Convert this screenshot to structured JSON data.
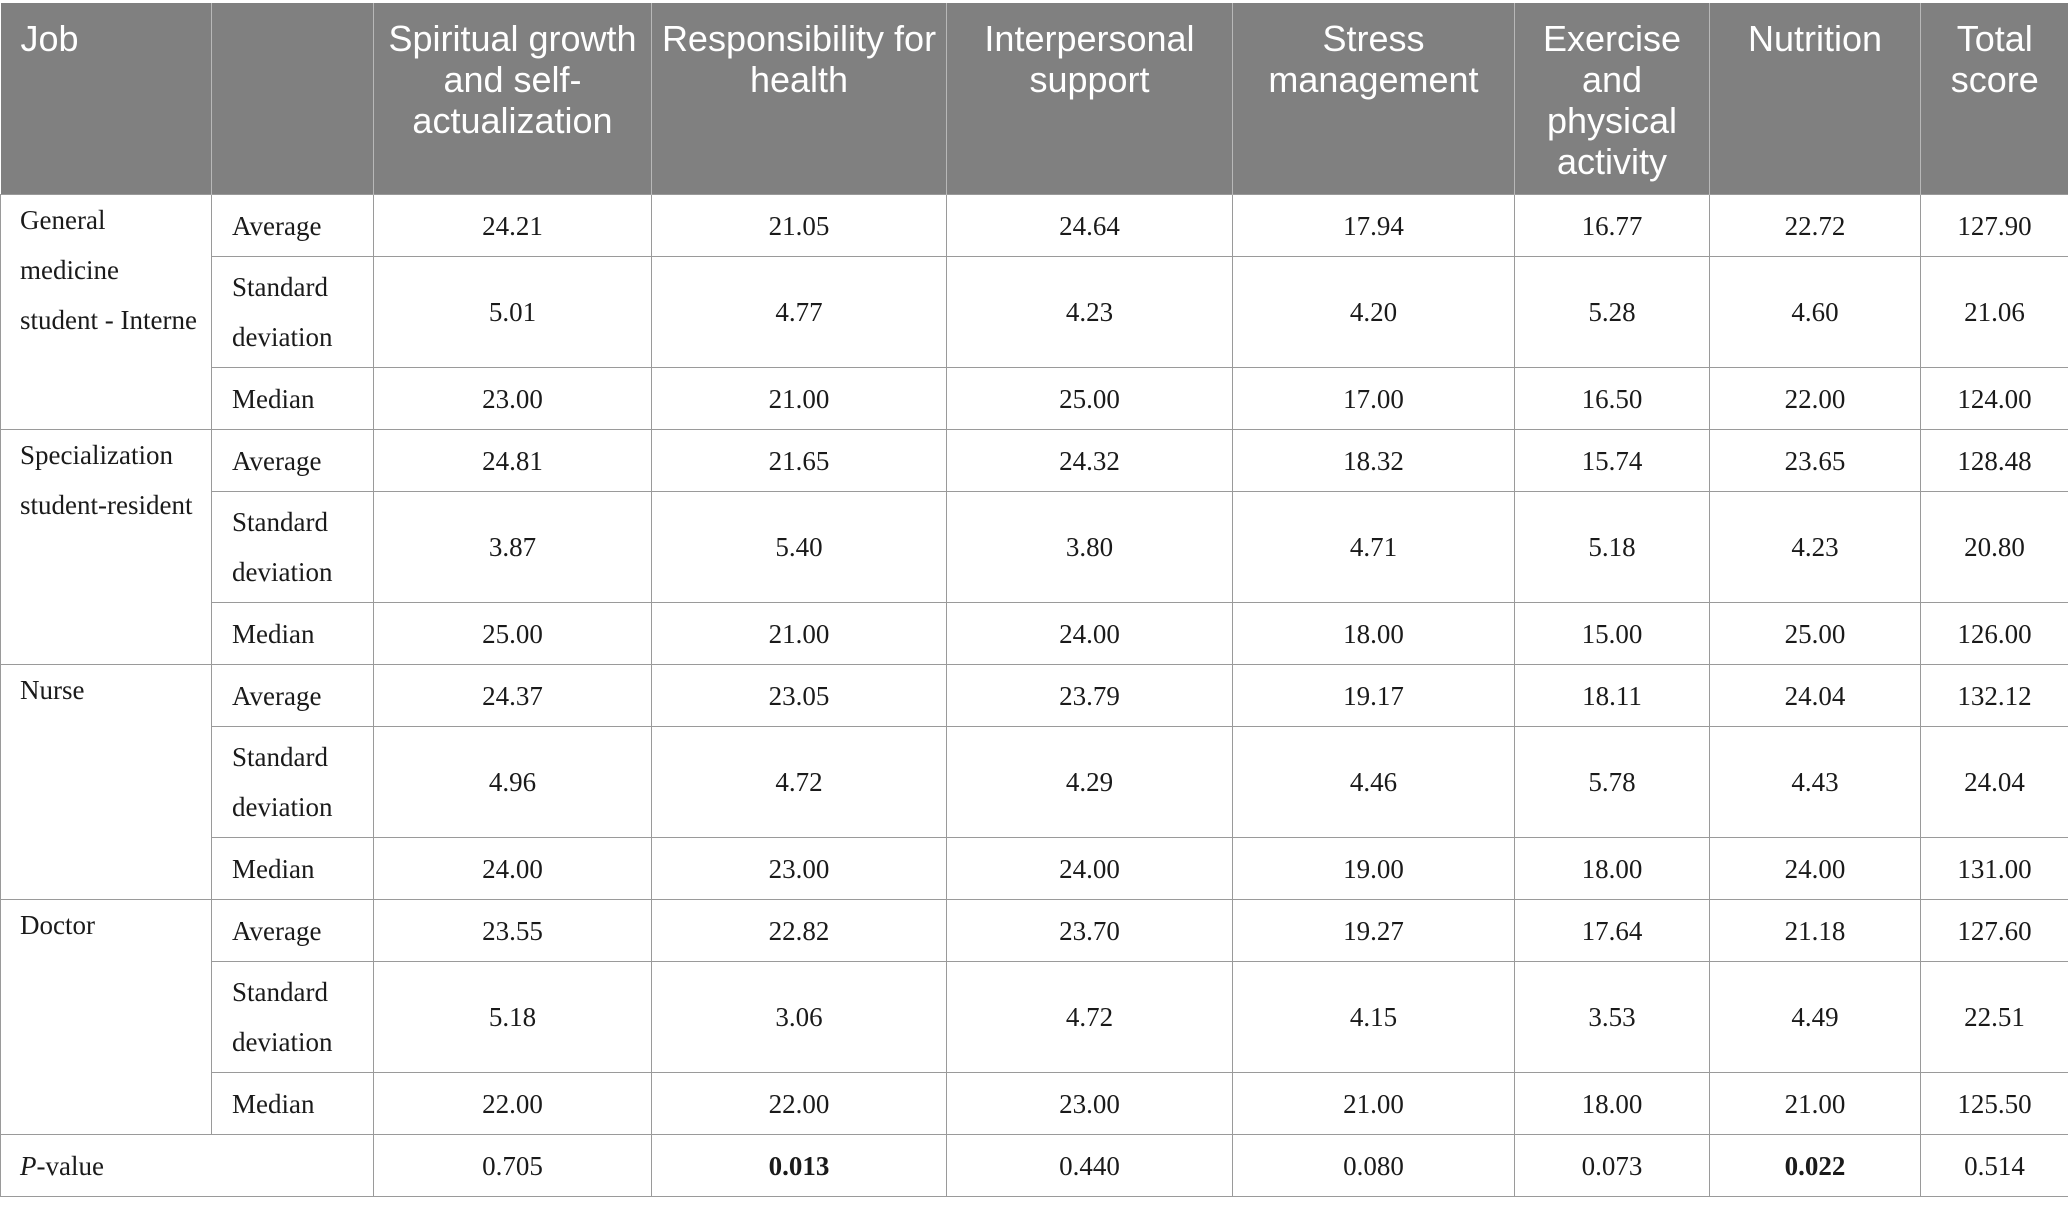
{
  "table": {
    "headers": {
      "job": "Job",
      "stat": "",
      "spiritual": "Spiritual growth and self-actualization",
      "responsibility": "Responsibility for health",
      "interpersonal": "Interpersonal support",
      "stress": "Stress management",
      "exercise": "Exercise and physical activity",
      "nutrition": "Nutrition",
      "total": "Total score"
    },
    "groups": [
      {
        "job": "General medicine student - Interne",
        "rows": [
          {
            "stat": "Average",
            "values": [
              "24.21",
              "21.05",
              "24.64",
              "17.94",
              "16.77",
              "22.72",
              "127.90"
            ]
          },
          {
            "stat": "Standard deviation",
            "values": [
              "5.01",
              "4.77",
              "4.23",
              "4.20",
              "5.28",
              "4.60",
              "21.06"
            ]
          },
          {
            "stat": "Median",
            "values": [
              "23.00",
              "21.00",
              "25.00",
              "17.00",
              "16.50",
              "22.00",
              "124.00"
            ]
          }
        ]
      },
      {
        "job": "Specialization student-resident",
        "rows": [
          {
            "stat": "Average",
            "values": [
              "24.81",
              "21.65",
              "24.32",
              "18.32",
              "15.74",
              "23.65",
              "128.48"
            ]
          },
          {
            "stat": "Standard deviation",
            "values": [
              "3.87",
              "5.40",
              "3.80",
              "4.71",
              "5.18",
              "4.23",
              "20.80"
            ]
          },
          {
            "stat": "Median",
            "values": [
              "25.00",
              "21.00",
              "24.00",
              "18.00",
              "15.00",
              "25.00",
              "126.00"
            ]
          }
        ]
      },
      {
        "job": "Nurse",
        "rows": [
          {
            "stat": "Average",
            "values": [
              "24.37",
              "23.05",
              "23.79",
              "19.17",
              "18.11",
              "24.04",
              "132.12"
            ]
          },
          {
            "stat": "Standard deviation",
            "values": [
              "4.96",
              "4.72",
              "4.29",
              "4.46",
              "5.78",
              "4.43",
              "24.04"
            ]
          },
          {
            "stat": "Median",
            "values": [
              "24.00",
              "23.00",
              "24.00",
              "19.00",
              "18.00",
              "24.00",
              "131.00"
            ]
          }
        ]
      },
      {
        "job": "Doctor",
        "rows": [
          {
            "stat": "Average",
            "values": [
              "23.55",
              "22.82",
              "23.70",
              "19.27",
              "17.64",
              "21.18",
              "127.60"
            ]
          },
          {
            "stat": "Standard deviation",
            "values": [
              "5.18",
              "3.06",
              "4.72",
              "4.15",
              "3.53",
              "4.49",
              "22.51"
            ]
          },
          {
            "stat": "Median",
            "values": [
              "22.00",
              "22.00",
              "23.00",
              "21.00",
              "18.00",
              "21.00",
              "125.50"
            ]
          }
        ]
      }
    ],
    "pvalue": {
      "label_italic": "P",
      "label_rest": "-value",
      "values": [
        "0.705",
        "0.013",
        "0.440",
        "0.080",
        "0.073",
        "0.022",
        "0.514"
      ],
      "bold_flags": [
        false,
        true,
        false,
        false,
        false,
        true,
        false
      ]
    }
  }
}
